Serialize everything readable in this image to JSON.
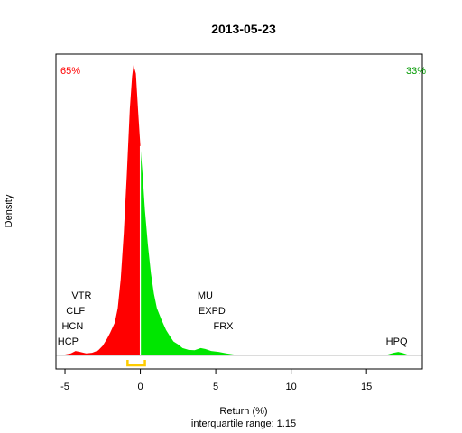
{
  "chart_data": {
    "type": "area",
    "title": "2013-05-23",
    "xlabel": "Return (%)",
    "ylabel": "Density",
    "subtitle": "interquartile range: 1.15",
    "xlim": [
      -5.6,
      18.7
    ],
    "ylim": [
      0,
      1.0
    ],
    "x_ticks": [
      -5,
      0,
      5,
      10,
      15
    ],
    "percent_left": "65%",
    "percent_right": "33%",
    "split_x": 0,
    "colors": {
      "negative": "#ff0000",
      "positive": "#00e600",
      "left_percent": "#ff0000",
      "right_percent": "#009900",
      "iqr_bracket": "#ffcc00",
      "baseline": "#c8c8c8"
    },
    "density_curve": [
      [
        -5.0,
        0.0
      ],
      [
        -4.6,
        0.004
      ],
      [
        -4.3,
        0.012
      ],
      [
        -4.0,
        0.009
      ],
      [
        -3.6,
        0.004
      ],
      [
        -3.2,
        0.006
      ],
      [
        -2.8,
        0.014
      ],
      [
        -2.5,
        0.03
      ],
      [
        -2.2,
        0.055
      ],
      [
        -2.0,
        0.075
      ],
      [
        -1.7,
        0.11
      ],
      [
        -1.5,
        0.16
      ],
      [
        -1.3,
        0.26
      ],
      [
        -1.1,
        0.42
      ],
      [
        -0.9,
        0.62
      ],
      [
        -0.7,
        0.85
      ],
      [
        -0.55,
        0.96
      ],
      [
        -0.45,
        1.0
      ],
      [
        -0.3,
        0.97
      ],
      [
        -0.15,
        0.84
      ],
      [
        0.0,
        0.72
      ],
      [
        0.15,
        0.62
      ],
      [
        0.3,
        0.5
      ],
      [
        0.5,
        0.38
      ],
      [
        0.7,
        0.28
      ],
      [
        0.9,
        0.21
      ],
      [
        1.1,
        0.16
      ],
      [
        1.4,
        0.12
      ],
      [
        1.7,
        0.085
      ],
      [
        2.0,
        0.06
      ],
      [
        2.2,
        0.045
      ],
      [
        2.5,
        0.035
      ],
      [
        2.8,
        0.022
      ],
      [
        3.2,
        0.016
      ],
      [
        3.6,
        0.015
      ],
      [
        4.0,
        0.022
      ],
      [
        4.3,
        0.019
      ],
      [
        4.7,
        0.012
      ],
      [
        5.2,
        0.009
      ],
      [
        5.7,
        0.004
      ],
      [
        6.2,
        0.0
      ],
      [
        16.4,
        0.0
      ],
      [
        16.8,
        0.006
      ],
      [
        17.1,
        0.009
      ],
      [
        17.4,
        0.005
      ],
      [
        17.7,
        0.0
      ]
    ],
    "iqr": [
      -0.85,
      0.3
    ],
    "tickers": [
      {
        "label": "VTR",
        "x": -3.9,
        "level": 4
      },
      {
        "label": "CLF",
        "x": -4.3,
        "level": 3
      },
      {
        "label": "HCN",
        "x": -4.5,
        "level": 2
      },
      {
        "label": "HCP",
        "x": -4.8,
        "level": 1
      },
      {
        "label": "MU",
        "x": 4.3,
        "level": 4
      },
      {
        "label": "EXPD",
        "x": 4.75,
        "level": 3
      },
      {
        "label": "FRX",
        "x": 5.5,
        "level": 2
      },
      {
        "label": "HPQ",
        "x": 17.0,
        "level": 1
      }
    ]
  }
}
